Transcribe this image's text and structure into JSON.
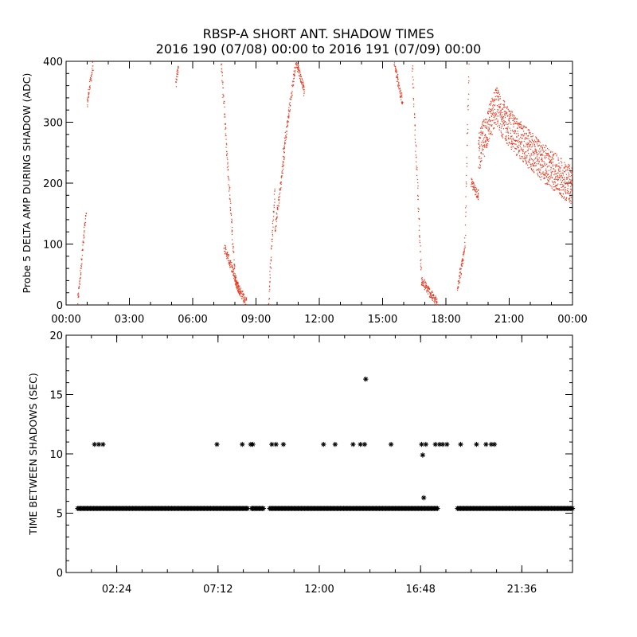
{
  "figure": {
    "title_line1": "RBSP-A SHORT ANT. SHADOW TIMES",
    "title_line2": "2016 190 (07/08) 00:00 to 2016 191 (07/09) 00:00"
  },
  "chart_data": [
    {
      "type": "scatter",
      "title": "",
      "ylabel": "Probe 5 DELTA AMP DURING SHADOW (ADC)",
      "xlabel": "",
      "x_unit": "hours since 2016-07-08 00:00",
      "xlim": [
        0,
        24
      ],
      "ylim": [
        0,
        400
      ],
      "x_tick_labels": [
        "00:00",
        "03:00",
        "06:00",
        "09:00",
        "12:00",
        "15:00",
        "18:00",
        "21:00",
        "00:00"
      ],
      "x_tick_values": [
        0,
        3,
        6,
        9,
        12,
        15,
        18,
        21,
        24
      ],
      "y_tick_labels": [
        "0",
        "100",
        "200",
        "300",
        "400"
      ],
      "y_tick_values": [
        0,
        100,
        200,
        300,
        400
      ],
      "marker_color": "#e8381e",
      "segments": [
        {
          "t0": 0.55,
          "t1": 0.95,
          "y0": 5,
          "y1": 150
        },
        {
          "t0": 1.0,
          "t1": 1.3,
          "y0": 330,
          "y1": 400
        },
        {
          "t0": 5.2,
          "t1": 5.35,
          "y0": 360,
          "y1": 400
        },
        {
          "t0": 7.35,
          "t1": 8.0,
          "y0": 400,
          "y1": 50
        },
        {
          "t0": 7.5,
          "t1": 8.25,
          "y0": 95,
          "y1": 20
        },
        {
          "t0": 8.0,
          "t1": 8.55,
          "y0": 40,
          "y1": 3
        },
        {
          "t0": 9.6,
          "t1": 9.9,
          "y0": 5,
          "y1": 190
        },
        {
          "t0": 9.9,
          "t1": 10.35,
          "y0": 120,
          "y1": 250
        },
        {
          "t0": 10.3,
          "t1": 10.9,
          "y0": 250,
          "y1": 400
        },
        {
          "t0": 10.9,
          "t1": 11.3,
          "y0": 400,
          "y1": 350
        },
        {
          "t0": 15.55,
          "t1": 15.95,
          "y0": 400,
          "y1": 330
        },
        {
          "t0": 16.4,
          "t1": 16.85,
          "y0": 400,
          "y1": 40
        },
        {
          "t0": 16.85,
          "t1": 17.6,
          "y0": 40,
          "y1": 2
        },
        {
          "t0": 18.55,
          "t1": 18.9,
          "y0": 30,
          "y1": 90
        },
        {
          "t0": 18.9,
          "t1": 19.1,
          "y0": 90,
          "y1": 400
        },
        {
          "t0": 19.2,
          "t1": 19.55,
          "y0": 200,
          "y1": 180
        }
      ],
      "band": {
        "t0": 19.55,
        "t1": 24.0,
        "peak_t": 20.4,
        "y_start": 250,
        "y_peak": 330,
        "y_end": 195,
        "spread": 40
      }
    },
    {
      "type": "scatter",
      "title": "",
      "ylabel": "TIME BETWEEN SHADOWS (SEC)",
      "xlabel": "",
      "x_unit": "hours since 2016-07-08 00:00",
      "xlim": [
        0,
        24
      ],
      "ylim": [
        0,
        20
      ],
      "x_tick_labels": [
        "02:24",
        "07:12",
        "12:00",
        "16:48",
        "21:36"
      ],
      "x_tick_values": [
        2.4,
        7.2,
        12.0,
        16.8,
        21.6
      ],
      "y_tick_labels": [
        "0",
        "5",
        "10",
        "15",
        "20"
      ],
      "y_tick_values": [
        0,
        5,
        10,
        15,
        20
      ],
      "marker_color": "#000000",
      "baseline": {
        "y": 5.4,
        "intervals": [
          [
            0.55,
            8.6
          ],
          [
            8.8,
            9.35
          ],
          [
            9.65,
            17.6
          ],
          [
            18.55,
            24.0
          ]
        ]
      },
      "points": [
        {
          "x": 1.35,
          "y": 10.8
        },
        {
          "x": 1.55,
          "y": 10.8
        },
        {
          "x": 1.75,
          "y": 10.8
        },
        {
          "x": 7.15,
          "y": 10.8
        },
        {
          "x": 8.35,
          "y": 10.8
        },
        {
          "x": 8.75,
          "y": 10.8
        },
        {
          "x": 8.85,
          "y": 10.8
        },
        {
          "x": 8.8,
          "y": 5.4
        },
        {
          "x": 9.75,
          "y": 10.8
        },
        {
          "x": 9.95,
          "y": 10.8
        },
        {
          "x": 10.3,
          "y": 10.8
        },
        {
          "x": 12.2,
          "y": 10.8
        },
        {
          "x": 12.75,
          "y": 10.8
        },
        {
          "x": 13.6,
          "y": 10.8
        },
        {
          "x": 13.95,
          "y": 10.8
        },
        {
          "x": 14.15,
          "y": 10.8
        },
        {
          "x": 14.2,
          "y": 16.3
        },
        {
          "x": 15.4,
          "y": 10.8
        },
        {
          "x": 16.85,
          "y": 10.8
        },
        {
          "x": 16.9,
          "y": 9.9
        },
        {
          "x": 16.95,
          "y": 6.3
        },
        {
          "x": 17.05,
          "y": 10.8
        },
        {
          "x": 17.5,
          "y": 10.8
        },
        {
          "x": 17.7,
          "y": 10.8
        },
        {
          "x": 17.85,
          "y": 10.8
        },
        {
          "x": 18.05,
          "y": 10.8
        },
        {
          "x": 18.7,
          "y": 10.8
        },
        {
          "x": 19.45,
          "y": 10.8
        },
        {
          "x": 19.9,
          "y": 10.8
        },
        {
          "x": 20.15,
          "y": 10.8
        },
        {
          "x": 20.3,
          "y": 10.8
        }
      ]
    }
  ]
}
